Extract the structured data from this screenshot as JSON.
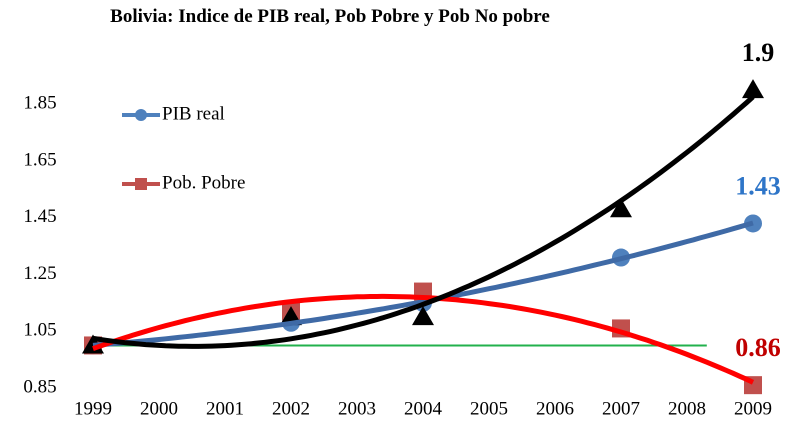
{
  "chart_data": {
    "type": "line",
    "title": "Bolivia: Indice de PIB real, Pob Pobre y Pob No pobre",
    "xticks": [
      1999,
      2000,
      2001,
      2002,
      2003,
      2004,
      2005,
      2006,
      2007,
      2008,
      2009
    ],
    "xlim": [
      1999,
      2009
    ],
    "ylim": [
      0.85,
      1.95
    ],
    "yticks": [
      0.85,
      1.05,
      1.25,
      1.45,
      1.65,
      1.85
    ],
    "reference_line": {
      "value": 1,
      "color": "#22b14c"
    },
    "series": [
      {
        "name": "PIB real",
        "color": "#4f81bd",
        "marker": "circle",
        "trend_color": "#3f6aa6",
        "label_last": true,
        "label_color": "#2e75c8",
        "x": [
          1999,
          2002,
          2004,
          2007,
          2009
        ],
        "values": [
          1.0,
          1.08,
          1.15,
          1.31,
          1.43
        ]
      },
      {
        "name": "Pob. Pobre",
        "color": "#c0504d",
        "marker": "square",
        "trend_color": "#ff0000",
        "label_last": true,
        "label_color": "#c00000",
        "x": [
          1999,
          2002,
          2004,
          2007,
          2009
        ],
        "values": [
          1.0,
          1.12,
          1.19,
          1.06,
          0.86
        ]
      },
      {
        "color": "#000000",
        "marker": "triangle",
        "trend_color": "#000000",
        "label_last": true,
        "label_color": "#000000",
        "x": [
          1999,
          2002,
          2004,
          2007,
          2009
        ],
        "values": [
          1.0,
          1.1,
          1.1,
          1.48,
          1.9
        ]
      }
    ]
  }
}
